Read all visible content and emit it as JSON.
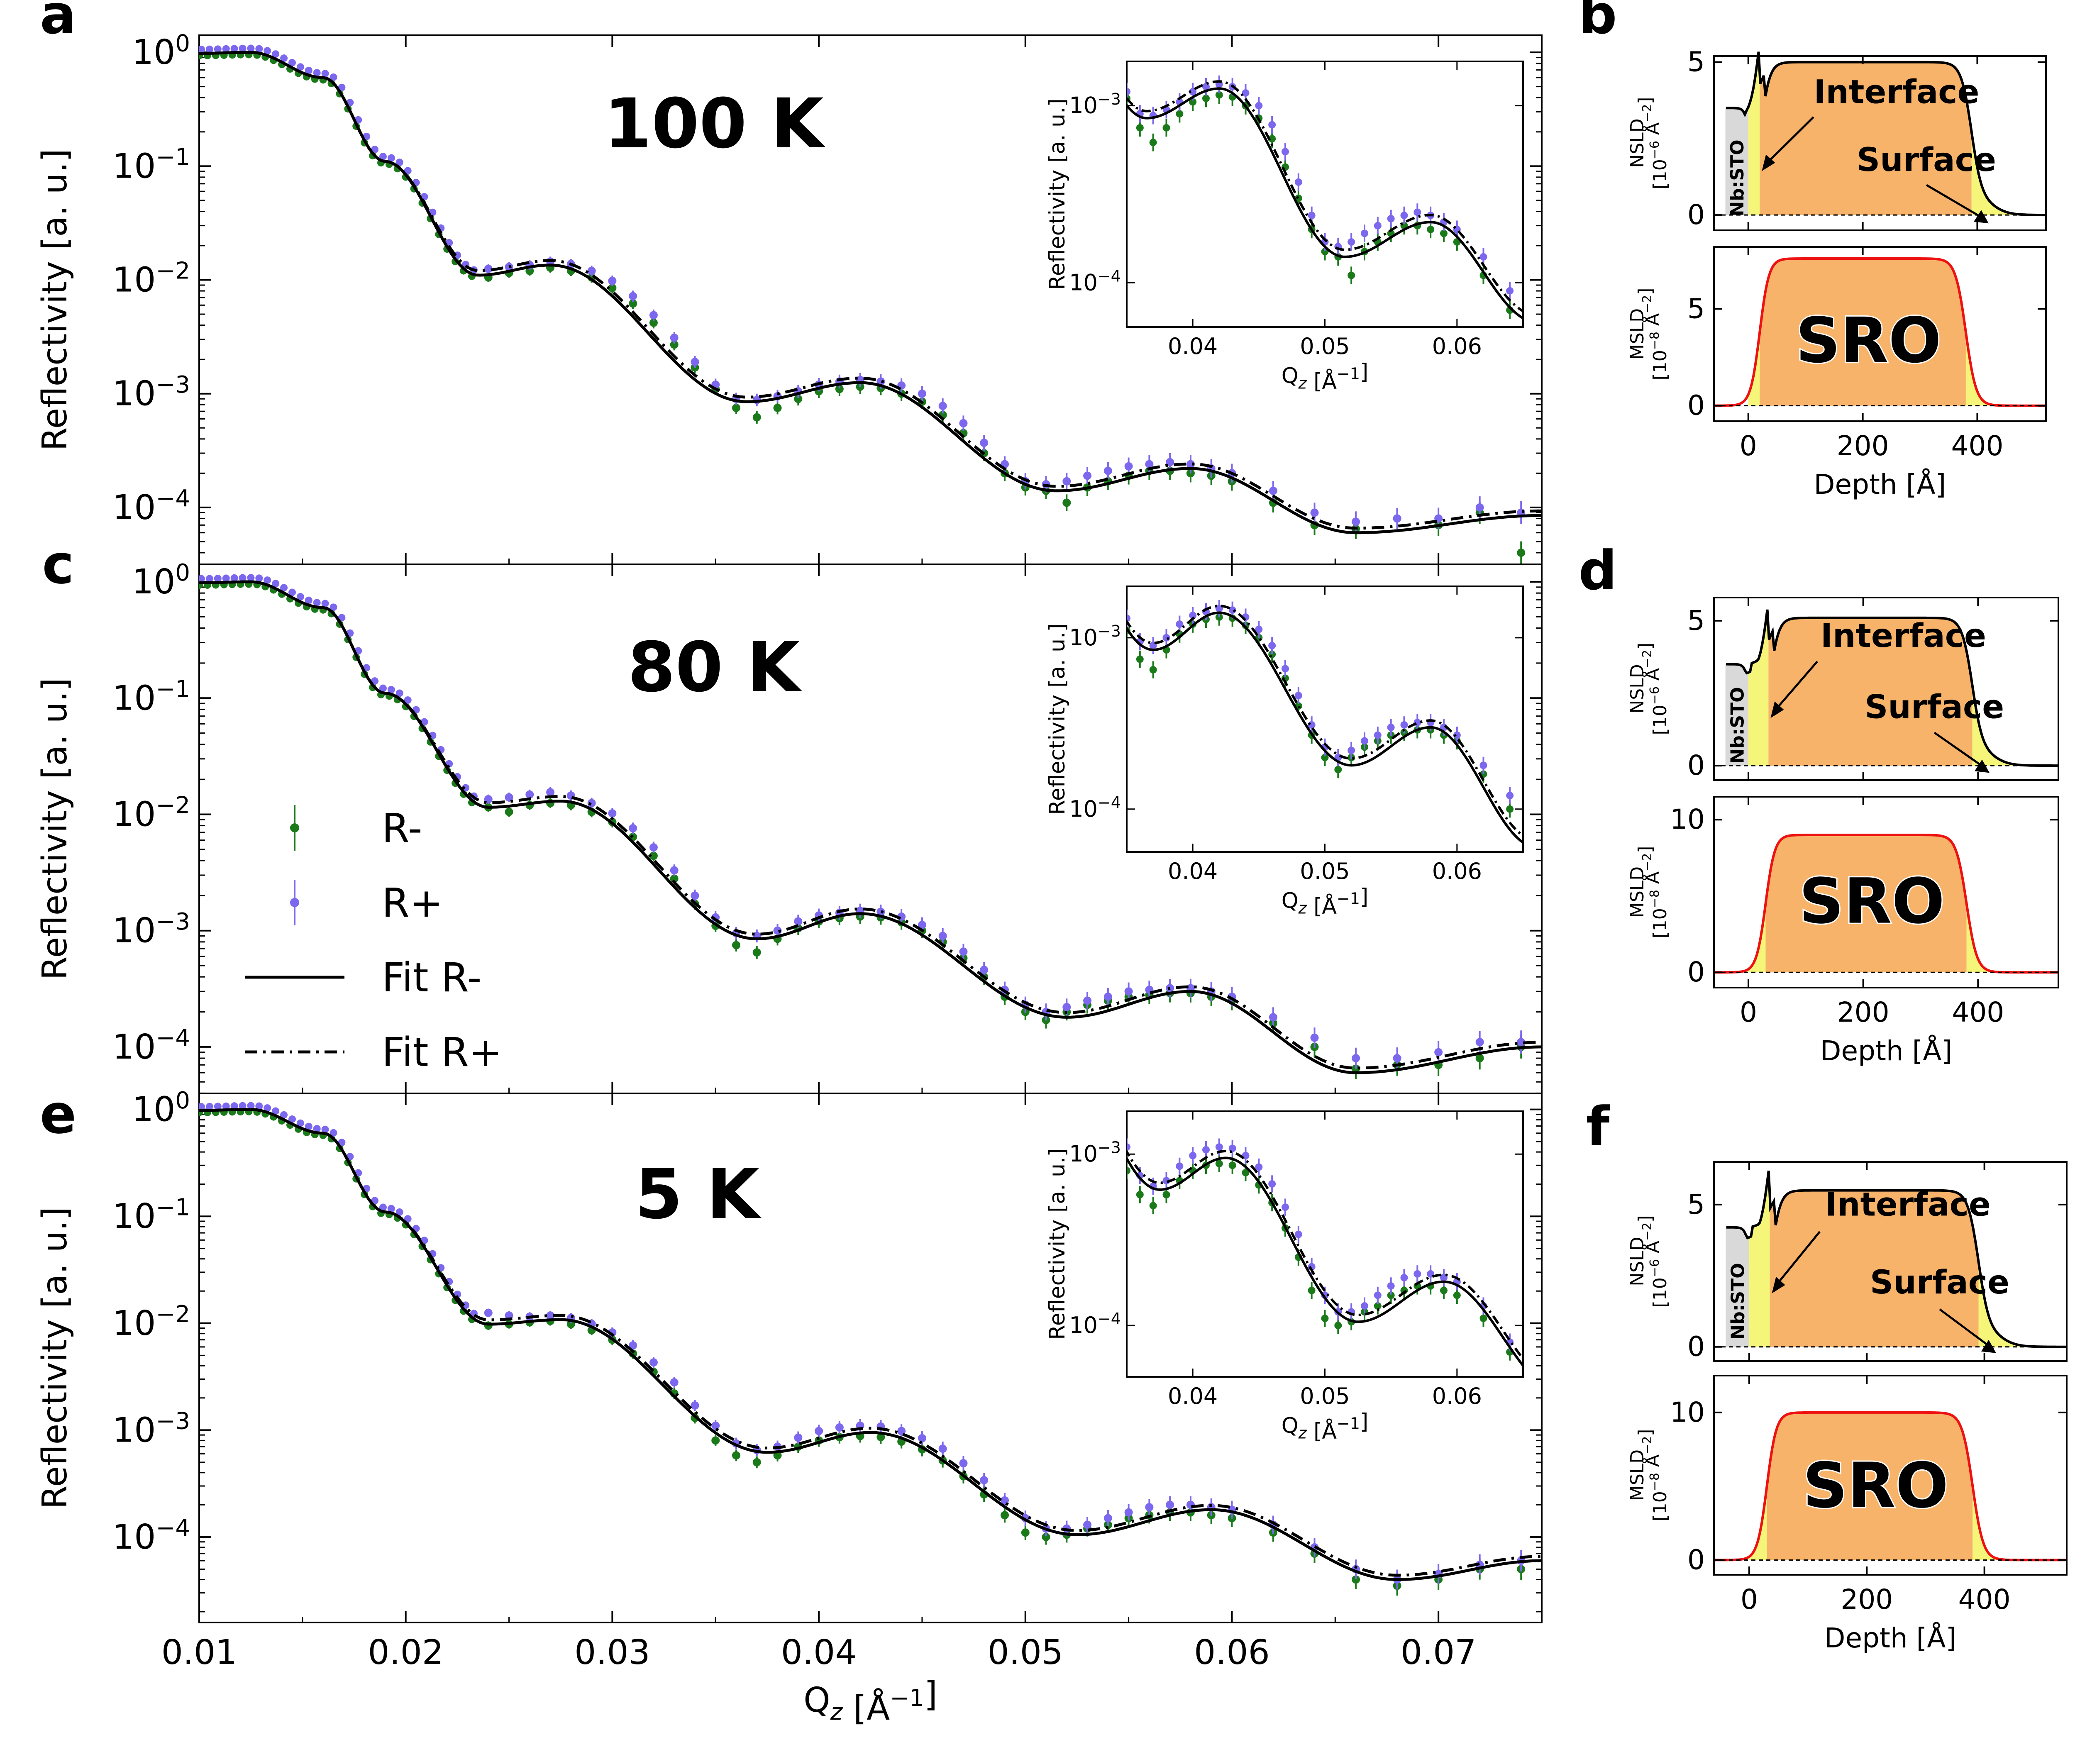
{
  "figure": {
    "description": "Polarized neutron reflectivity R- and R+ with fits at three temperatures, with NSLD and MSLD depth profiles"
  },
  "colors": {
    "r_minus": "#1a7a1a",
    "r_plus": "#7b68ee",
    "fit": "#000000",
    "sro_fill": "#f8b36a",
    "interface_fill": "#f5f57a",
    "substrate_fill": "#d9d9d9",
    "msld_line": "#ee1111"
  },
  "chart_data": [
    {
      "panel": "a",
      "type": "scatter",
      "temperature_label": "100 K",
      "xlabel": "Q_z [Å^-1]",
      "ylabel": "Reflectivity [a. u.]",
      "xlim": [
        0.01,
        0.075
      ],
      "ylim_log10": [
        -4.5,
        0.15
      ],
      "x_ticks": [
        "0.01",
        "0.02",
        "0.03",
        "0.04",
        "0.05",
        "0.06",
        "0.07"
      ],
      "y_ticks": [
        "10^0",
        "10^-1",
        "10^-2",
        "10^-3",
        "10^-4"
      ],
      "fit_shape": {
        "dip1": [
          0.0235,
          0.011
        ],
        "hump1": [
          0.027,
          0.0135
        ],
        "dip2": [
          0.0365,
          0.00085
        ],
        "hump2": [
          0.042,
          0.00125
        ],
        "dip3": [
          0.0515,
          0.00014
        ],
        "hump3": [
          0.058,
          0.00022
        ],
        "dip4": [
          0.066,
          6e-05
        ],
        "end": [
          0.075,
          8.5e-05
        ]
      },
      "series": [
        {
          "name": "R-",
          "x": [
            0.024,
            0.025,
            0.026,
            0.027,
            0.028,
            0.029,
            0.03,
            0.031,
            0.032,
            0.033,
            0.034,
            0.035,
            0.036,
            0.037,
            0.038,
            0.039,
            0.04,
            0.041,
            0.042,
            0.043,
            0.044,
            0.045,
            0.046,
            0.047,
            0.048,
            0.049,
            0.05,
            0.051,
            0.052,
            0.053,
            0.054,
            0.055,
            0.056,
            0.057,
            0.058,
            0.059,
            0.06,
            0.062,
            0.064,
            0.066,
            0.068,
            0.07,
            0.072,
            0.074
          ],
          "y": [
            0.0105,
            0.0115,
            0.012,
            0.0128,
            0.012,
            0.0105,
            0.0085,
            0.0062,
            0.0042,
            0.0027,
            0.0017,
            0.0011,
            0.00075,
            0.00062,
            0.00075,
            0.0009,
            0.00105,
            0.0011,
            0.00115,
            0.00112,
            0.001,
            0.00085,
            0.00065,
            0.00045,
            0.0003,
            0.0002,
            0.00015,
            0.00014,
            0.00011,
            0.00015,
            0.00017,
            0.00019,
            0.00021,
            0.00021,
            0.0002,
            0.00019,
            0.00017,
            0.00011,
            7e-05,
            6.5e-05,
            8e-05,
            7e-05,
            9e-05,
            4e-05
          ]
        },
        {
          "name": "R+",
          "x": [
            0.024,
            0.025,
            0.026,
            0.027,
            0.028,
            0.029,
            0.03,
            0.031,
            0.032,
            0.033,
            0.034,
            0.035,
            0.036,
            0.037,
            0.038,
            0.039,
            0.04,
            0.041,
            0.042,
            0.043,
            0.044,
            0.045,
            0.046,
            0.047,
            0.048,
            0.049,
            0.05,
            0.051,
            0.052,
            0.053,
            0.054,
            0.055,
            0.056,
            0.057,
            0.058,
            0.059,
            0.06,
            0.062,
            0.064,
            0.066,
            0.068,
            0.07,
            0.072,
            0.074
          ],
          "y": [
            0.0125,
            0.013,
            0.0135,
            0.0145,
            0.0138,
            0.012,
            0.0098,
            0.0072,
            0.0049,
            0.0031,
            0.0019,
            0.0012,
            0.0009,
            0.00088,
            0.00095,
            0.00105,
            0.0012,
            0.00128,
            0.00132,
            0.00128,
            0.00118,
            0.001,
            0.00078,
            0.00055,
            0.00037,
            0.00024,
            0.00017,
            0.00016,
            0.00017,
            0.00019,
            0.00021,
            0.00023,
            0.00024,
            0.00025,
            0.00024,
            0.00022,
            0.0002,
            0.00014,
            9e-05,
            7.5e-05,
            8e-05,
            8e-05,
            0.0001,
            9e-05
          ]
        }
      ],
      "fits": [
        {
          "name": "Fit R-",
          "style": "solid"
        },
        {
          "name": "Fit R+",
          "style": "dashdot"
        }
      ],
      "inset": {
        "xlabel": "Q_z [Å^-1]",
        "ylabel": "Reflectivity [a. u.]",
        "xlim": [
          0.035,
          0.065
        ],
        "ylim_log10": [
          -4.25,
          -2.75
        ],
        "x_ticks": [
          "0.04",
          "0.05",
          "0.06"
        ],
        "y_ticks": [
          "10^-3",
          "10^-4"
        ]
      }
    },
    {
      "panel": "c",
      "type": "scatter",
      "temperature_label": "80 K",
      "xlabel": "Q_z [Å^-1]",
      "ylabel": "Reflectivity [a. u.]",
      "xlim": [
        0.01,
        0.075
      ],
      "ylim_log10": [
        -4.4,
        0.15
      ],
      "x_ticks": [
        "0.01",
        "0.02",
        "0.03",
        "0.04",
        "0.05",
        "0.06",
        "0.07"
      ],
      "y_ticks": [
        "10^0",
        "10^-1",
        "10^-2",
        "10^-3",
        "10^-4"
      ],
      "fit_shape": {
        "dip1": [
          0.024,
          0.0115
        ],
        "hump1": [
          0.0275,
          0.013
        ],
        "dip2": [
          0.037,
          0.00085
        ],
        "hump2": [
          0.042,
          0.0014
        ],
        "dip3": [
          0.052,
          0.00018
        ],
        "hump3": [
          0.058,
          0.0003
        ],
        "dip4": [
          0.066,
          6e-05
        ],
        "end": [
          0.075,
          0.0001
        ]
      },
      "legend": [
        "R-",
        "R+",
        "Fit R-",
        "Fit R+"
      ],
      "series": [
        {
          "name": "R-",
          "x": [
            0.024,
            0.025,
            0.026,
            0.027,
            0.028,
            0.029,
            0.03,
            0.031,
            0.032,
            0.033,
            0.034,
            0.035,
            0.036,
            0.037,
            0.038,
            0.039,
            0.04,
            0.041,
            0.042,
            0.043,
            0.044,
            0.045,
            0.046,
            0.047,
            0.048,
            0.049,
            0.05,
            0.051,
            0.052,
            0.053,
            0.054,
            0.055,
            0.056,
            0.057,
            0.058,
            0.059,
            0.06,
            0.062,
            0.064,
            0.066,
            0.068,
            0.07,
            0.072,
            0.074
          ],
          "y": [
            0.0115,
            0.0105,
            0.012,
            0.0125,
            0.012,
            0.0105,
            0.0086,
            0.0064,
            0.0044,
            0.0028,
            0.0017,
            0.0011,
            0.00075,
            0.00065,
            0.00085,
            0.00105,
            0.0012,
            0.00128,
            0.00132,
            0.0013,
            0.00118,
            0.001,
            0.0008,
            0.00058,
            0.0004,
            0.00027,
            0.0002,
            0.00017,
            0.0002,
            0.00023,
            0.00025,
            0.00027,
            0.00028,
            0.00029,
            0.00029,
            0.00027,
            0.00025,
            0.00016,
            0.0001,
            6.5e-05,
            7e-05,
            7e-05,
            8e-05,
            0.0001
          ]
        },
        {
          "name": "R+",
          "x": [
            0.024,
            0.025,
            0.026,
            0.027,
            0.028,
            0.029,
            0.03,
            0.031,
            0.032,
            0.033,
            0.034,
            0.035,
            0.036,
            0.037,
            0.038,
            0.039,
            0.04,
            0.041,
            0.042,
            0.043,
            0.044,
            0.045,
            0.046,
            0.047,
            0.048,
            0.049,
            0.05,
            0.051,
            0.052,
            0.053,
            0.054,
            0.055,
            0.056,
            0.057,
            0.058,
            0.059,
            0.06,
            0.062,
            0.064,
            0.066,
            0.068,
            0.07,
            0.072,
            0.074
          ],
          "y": [
            0.0135,
            0.014,
            0.0148,
            0.0155,
            0.0145,
            0.0125,
            0.0102,
            0.0076,
            0.0052,
            0.0033,
            0.002,
            0.0013,
            0.00095,
            0.0009,
            0.001,
            0.0012,
            0.00135,
            0.00142,
            0.00148,
            0.00145,
            0.00132,
            0.00112,
            0.0009,
            0.00066,
            0.00046,
            0.00031,
            0.00023,
            0.0002,
            0.00022,
            0.00025,
            0.00027,
            0.0003,
            0.00031,
            0.00032,
            0.00032,
            0.0003,
            0.00027,
            0.00018,
            0.00012,
            8e-05,
            8e-05,
            9e-05,
            0.00011,
            0.00011
          ]
        }
      ],
      "fits": [
        {
          "name": "Fit R-",
          "style": "solid"
        },
        {
          "name": "Fit R+",
          "style": "dashdot"
        }
      ],
      "inset": {
        "xlabel": "Q_z [Å^-1]",
        "ylabel": "Reflectivity [a. u.]",
        "xlim": [
          0.035,
          0.065
        ],
        "ylim_log10": [
          -4.25,
          -2.7
        ],
        "x_ticks": [
          "0.04",
          "0.05",
          "0.06"
        ],
        "y_ticks": [
          "10^-3",
          "10^-4"
        ]
      }
    },
    {
      "panel": "e",
      "type": "scatter",
      "temperature_label": "5 K",
      "xlabel": "Q_z [Å^-1]",
      "ylabel": "Reflectivity [a. u.]",
      "xlim": [
        0.01,
        0.075
      ],
      "ylim_log10": [
        -4.8,
        0.15
      ],
      "x_ticks": [
        "0.01",
        "0.02",
        "0.03",
        "0.04",
        "0.05",
        "0.06",
        "0.07"
      ],
      "y_ticks": [
        "10^0",
        "10^-1",
        "10^-2",
        "10^-3",
        "10^-4"
      ],
      "fit_shape": {
        "dip1": [
          0.024,
          0.0098
        ],
        "hump1": [
          0.0275,
          0.0108
        ],
        "dip2": [
          0.0375,
          0.00062
        ],
        "hump2": [
          0.0425,
          0.00095
        ],
        "dip3": [
          0.0525,
          0.000105
        ],
        "hump3": [
          0.059,
          0.00018
        ],
        "dip4": [
          0.068,
          4e-05
        ],
        "end": [
          0.075,
          6e-05
        ]
      },
      "series": [
        {
          "name": "R-",
          "x": [
            0.024,
            0.025,
            0.026,
            0.027,
            0.028,
            0.029,
            0.03,
            0.031,
            0.032,
            0.033,
            0.034,
            0.035,
            0.036,
            0.037,
            0.038,
            0.039,
            0.04,
            0.041,
            0.042,
            0.043,
            0.044,
            0.045,
            0.046,
            0.047,
            0.048,
            0.049,
            0.05,
            0.051,
            0.052,
            0.053,
            0.054,
            0.055,
            0.056,
            0.057,
            0.058,
            0.059,
            0.06,
            0.062,
            0.064,
            0.066,
            0.068,
            0.07,
            0.072,
            0.074
          ],
          "y": [
            0.0095,
            0.0098,
            0.0102,
            0.0105,
            0.0098,
            0.0086,
            0.007,
            0.0052,
            0.0035,
            0.0022,
            0.0013,
            0.0008,
            0.00058,
            0.0005,
            0.00058,
            0.0007,
            0.0008,
            0.00086,
            0.00088,
            0.00086,
            0.00078,
            0.00066,
            0.00052,
            0.00037,
            0.00025,
            0.00016,
            0.00011,
            0.0001,
            0.000105,
            0.00012,
            0.00013,
            0.00015,
            0.00016,
            0.00017,
            0.00017,
            0.00016,
            0.00015,
            0.00011,
            7e-05,
            4e-05,
            3.5e-05,
            4e-05,
            5e-05,
            5e-05
          ]
        },
        {
          "name": "R+",
          "x": [
            0.024,
            0.025,
            0.026,
            0.027,
            0.028,
            0.029,
            0.03,
            0.031,
            0.032,
            0.033,
            0.034,
            0.035,
            0.036,
            0.037,
            0.038,
            0.039,
            0.04,
            0.041,
            0.042,
            0.043,
            0.044,
            0.045,
            0.046,
            0.047,
            0.048,
            0.049,
            0.05,
            0.051,
            0.052,
            0.053,
            0.054,
            0.055,
            0.056,
            0.057,
            0.058,
            0.059,
            0.06,
            0.062,
            0.064,
            0.066,
            0.068,
            0.07,
            0.072,
            0.074
          ],
          "y": [
            0.0125,
            0.0118,
            0.0115,
            0.0118,
            0.0112,
            0.0099,
            0.0082,
            0.0062,
            0.0043,
            0.0028,
            0.0017,
            0.0011,
            0.00075,
            0.00065,
            0.0007,
            0.00085,
            0.00098,
            0.00106,
            0.0011,
            0.00108,
            0.00098,
            0.00084,
            0.00067,
            0.00049,
            0.00034,
            0.00022,
            0.00015,
            0.00012,
            0.00012,
            0.00013,
            0.00015,
            0.00017,
            0.00019,
            0.0002,
            0.0002,
            0.00019,
            0.00018,
            0.00013,
            8e-05,
            5e-05,
            4e-05,
            4.5e-05,
            5.5e-05,
            6e-05
          ]
        }
      ],
      "fits": [
        {
          "name": "Fit R-",
          "style": "solid"
        },
        {
          "name": "Fit R+",
          "style": "dashdot"
        }
      ],
      "inset": {
        "xlabel": "Q_z [Å^-1]",
        "ylabel": "Reflectivity [a. u.]",
        "xlim": [
          0.035,
          0.065
        ],
        "ylim_log10": [
          -4.3,
          -2.75
        ],
        "x_ticks": [
          "0.04",
          "0.05",
          "0.06"
        ],
        "y_ticks": [
          "10^-3",
          "10^-4"
        ]
      }
    },
    {
      "panel": "b",
      "type": "area",
      "xlabel": "Depth [Å]",
      "x_ticks": [
        "0",
        "200",
        "400"
      ],
      "xlim": [
        -60,
        520
      ],
      "nsld": {
        "ylabel_line1": "NSLD",
        "ylabel_line2": "[10^-6 Å^-2]",
        "y_ticks": [
          "0",
          "5"
        ],
        "ylim": [
          -0.5,
          5.2
        ],
        "substrate_level": 3.5,
        "film_level": 5.0,
        "film_start": 20,
        "film_end": 390
      },
      "msld": {
        "ylabel_line1": "MSLD",
        "ylabel_line2": "[10^-8 Å^-2]",
        "y_ticks": [
          "0",
          "5"
        ],
        "ylim": [
          -0.8,
          8.2
        ],
        "film_level": 7.6,
        "film_start": 20,
        "film_end": 380
      },
      "labels": {
        "interface": "Interface",
        "surface": "Surface",
        "substrate": "Nb:STO",
        "layer": "SRO"
      }
    },
    {
      "panel": "d",
      "type": "area",
      "xlabel": "Depth [Å]",
      "x_ticks": [
        "0",
        "200",
        "400"
      ],
      "xlim": [
        -60,
        540
      ],
      "nsld": {
        "ylabel_line1": "NSLD",
        "ylabel_line2": "[10^-6 Å^-2]",
        "y_ticks": [
          "0",
          "5"
        ],
        "ylim": [
          -0.5,
          5.8
        ],
        "substrate_level": 3.5,
        "film_level": 5.1,
        "film_start": 35,
        "film_end": 390
      },
      "msld": {
        "ylabel_line1": "MSLD",
        "ylabel_line2": "[10^-8 Å^-2]",
        "y_ticks": [
          "0",
          "10"
        ],
        "ylim": [
          -1,
          11.5
        ],
        "film_level": 9.0,
        "film_start": 30,
        "film_end": 380
      },
      "labels": {
        "interface": "Interface",
        "surface": "Surface",
        "substrate": "Nb:STO",
        "layer": "SRO"
      }
    },
    {
      "panel": "f",
      "type": "area",
      "xlabel": "Depth [Å]",
      "x_ticks": [
        "0",
        "200",
        "400"
      ],
      "xlim": [
        -60,
        540
      ],
      "nsld": {
        "ylabel_line1": "NSLD",
        "ylabel_line2": "[10^-6 Å^-2]",
        "y_ticks": [
          "0",
          "5"
        ],
        "ylim": [
          -0.5,
          6.5
        ],
        "substrate_level": 4.2,
        "film_level": 5.5,
        "film_start": 35,
        "film_end": 390
      },
      "msld": {
        "ylabel_line1": "MSLD",
        "ylabel_line2": "[10^-8 Å^-2]",
        "y_ticks": [
          "0",
          "10"
        ],
        "ylim": [
          -1,
          12.5
        ],
        "film_level": 10.0,
        "film_start": 30,
        "film_end": 380
      },
      "labels": {
        "interface": "Interface",
        "surface": "Surface",
        "substrate": "Nb:STO",
        "layer": "SRO"
      }
    }
  ]
}
